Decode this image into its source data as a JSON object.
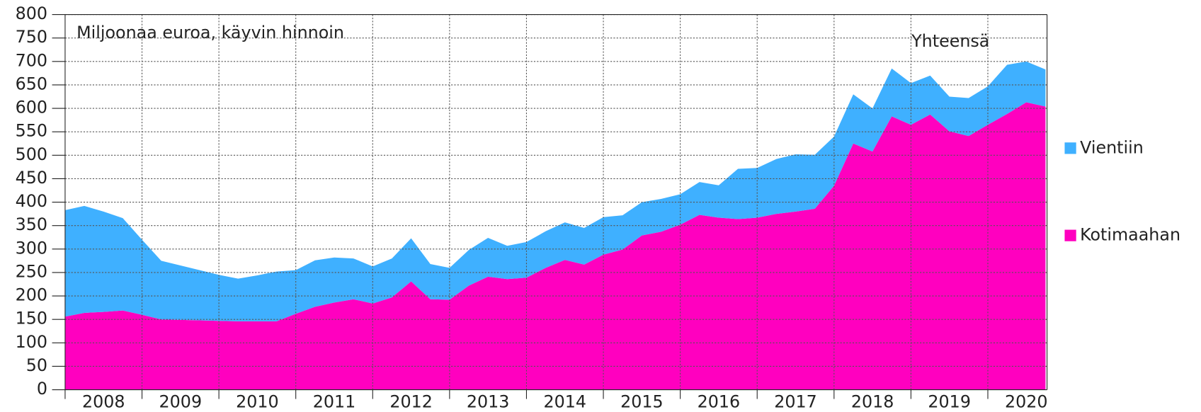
{
  "chart_data": {
    "type": "stacked_area",
    "annotations": [
      "Miljoonaa euroa, käyvin hinnoin",
      "Yhteensä"
    ],
    "categories": [
      "2008",
      null,
      null,
      null,
      "2009",
      null,
      null,
      null,
      "2010",
      null,
      null,
      null,
      "2011",
      null,
      null,
      null,
      "2012",
      null,
      null,
      null,
      "2013",
      null,
      null,
      null,
      "2014",
      null,
      null,
      null,
      "2015",
      null,
      null,
      null,
      "2016",
      null,
      null,
      null,
      "2017",
      null,
      null,
      null,
      "2018",
      null,
      null,
      null,
      "2019",
      null,
      null,
      null,
      "2020",
      null,
      null,
      null
    ],
    "series": [
      {
        "name": "Vientiin",
        "color": "#3fb0ff",
        "values": [
          227,
          228,
          214,
          197,
          160,
          125,
          116,
          107,
          98,
          91,
          98,
          106,
          93,
          99,
          96,
          87,
          79,
          83,
          92,
          75,
          68,
          76,
          83,
          71,
          76,
          78,
          80,
          78,
          80,
          73,
          71,
          70,
          65,
          70,
          69,
          107,
          106,
          117,
          122,
          115,
          105,
          105,
          92,
          102,
          89,
          83,
          74,
          81,
          82,
          105,
          87,
          79
        ]
      },
      {
        "name": "Kotimaahan",
        "color": "#ff00bf",
        "values": [
          156,
          164,
          166,
          169,
          160,
          150,
          149,
          148,
          147,
          146,
          146,
          146,
          162,
          177,
          186,
          193,
          184,
          197,
          231,
          193,
          192,
          222,
          241,
          236,
          239,
          260,
          277,
          267,
          288,
          299,
          329,
          337,
          352,
          373,
          367,
          364,
          367,
          375,
          380,
          386,
          435,
          525,
          508,
          583,
          565,
          587,
          551,
          541,
          565,
          588,
          613,
          604
        ]
      }
    ],
    "ylim": [
      0,
      800
    ],
    "yticks": [
      0,
      50,
      100,
      150,
      200,
      250,
      300,
      350,
      400,
      450,
      500,
      550,
      600,
      650,
      700,
      750,
      800
    ],
    "grid": true,
    "legend": "right"
  }
}
